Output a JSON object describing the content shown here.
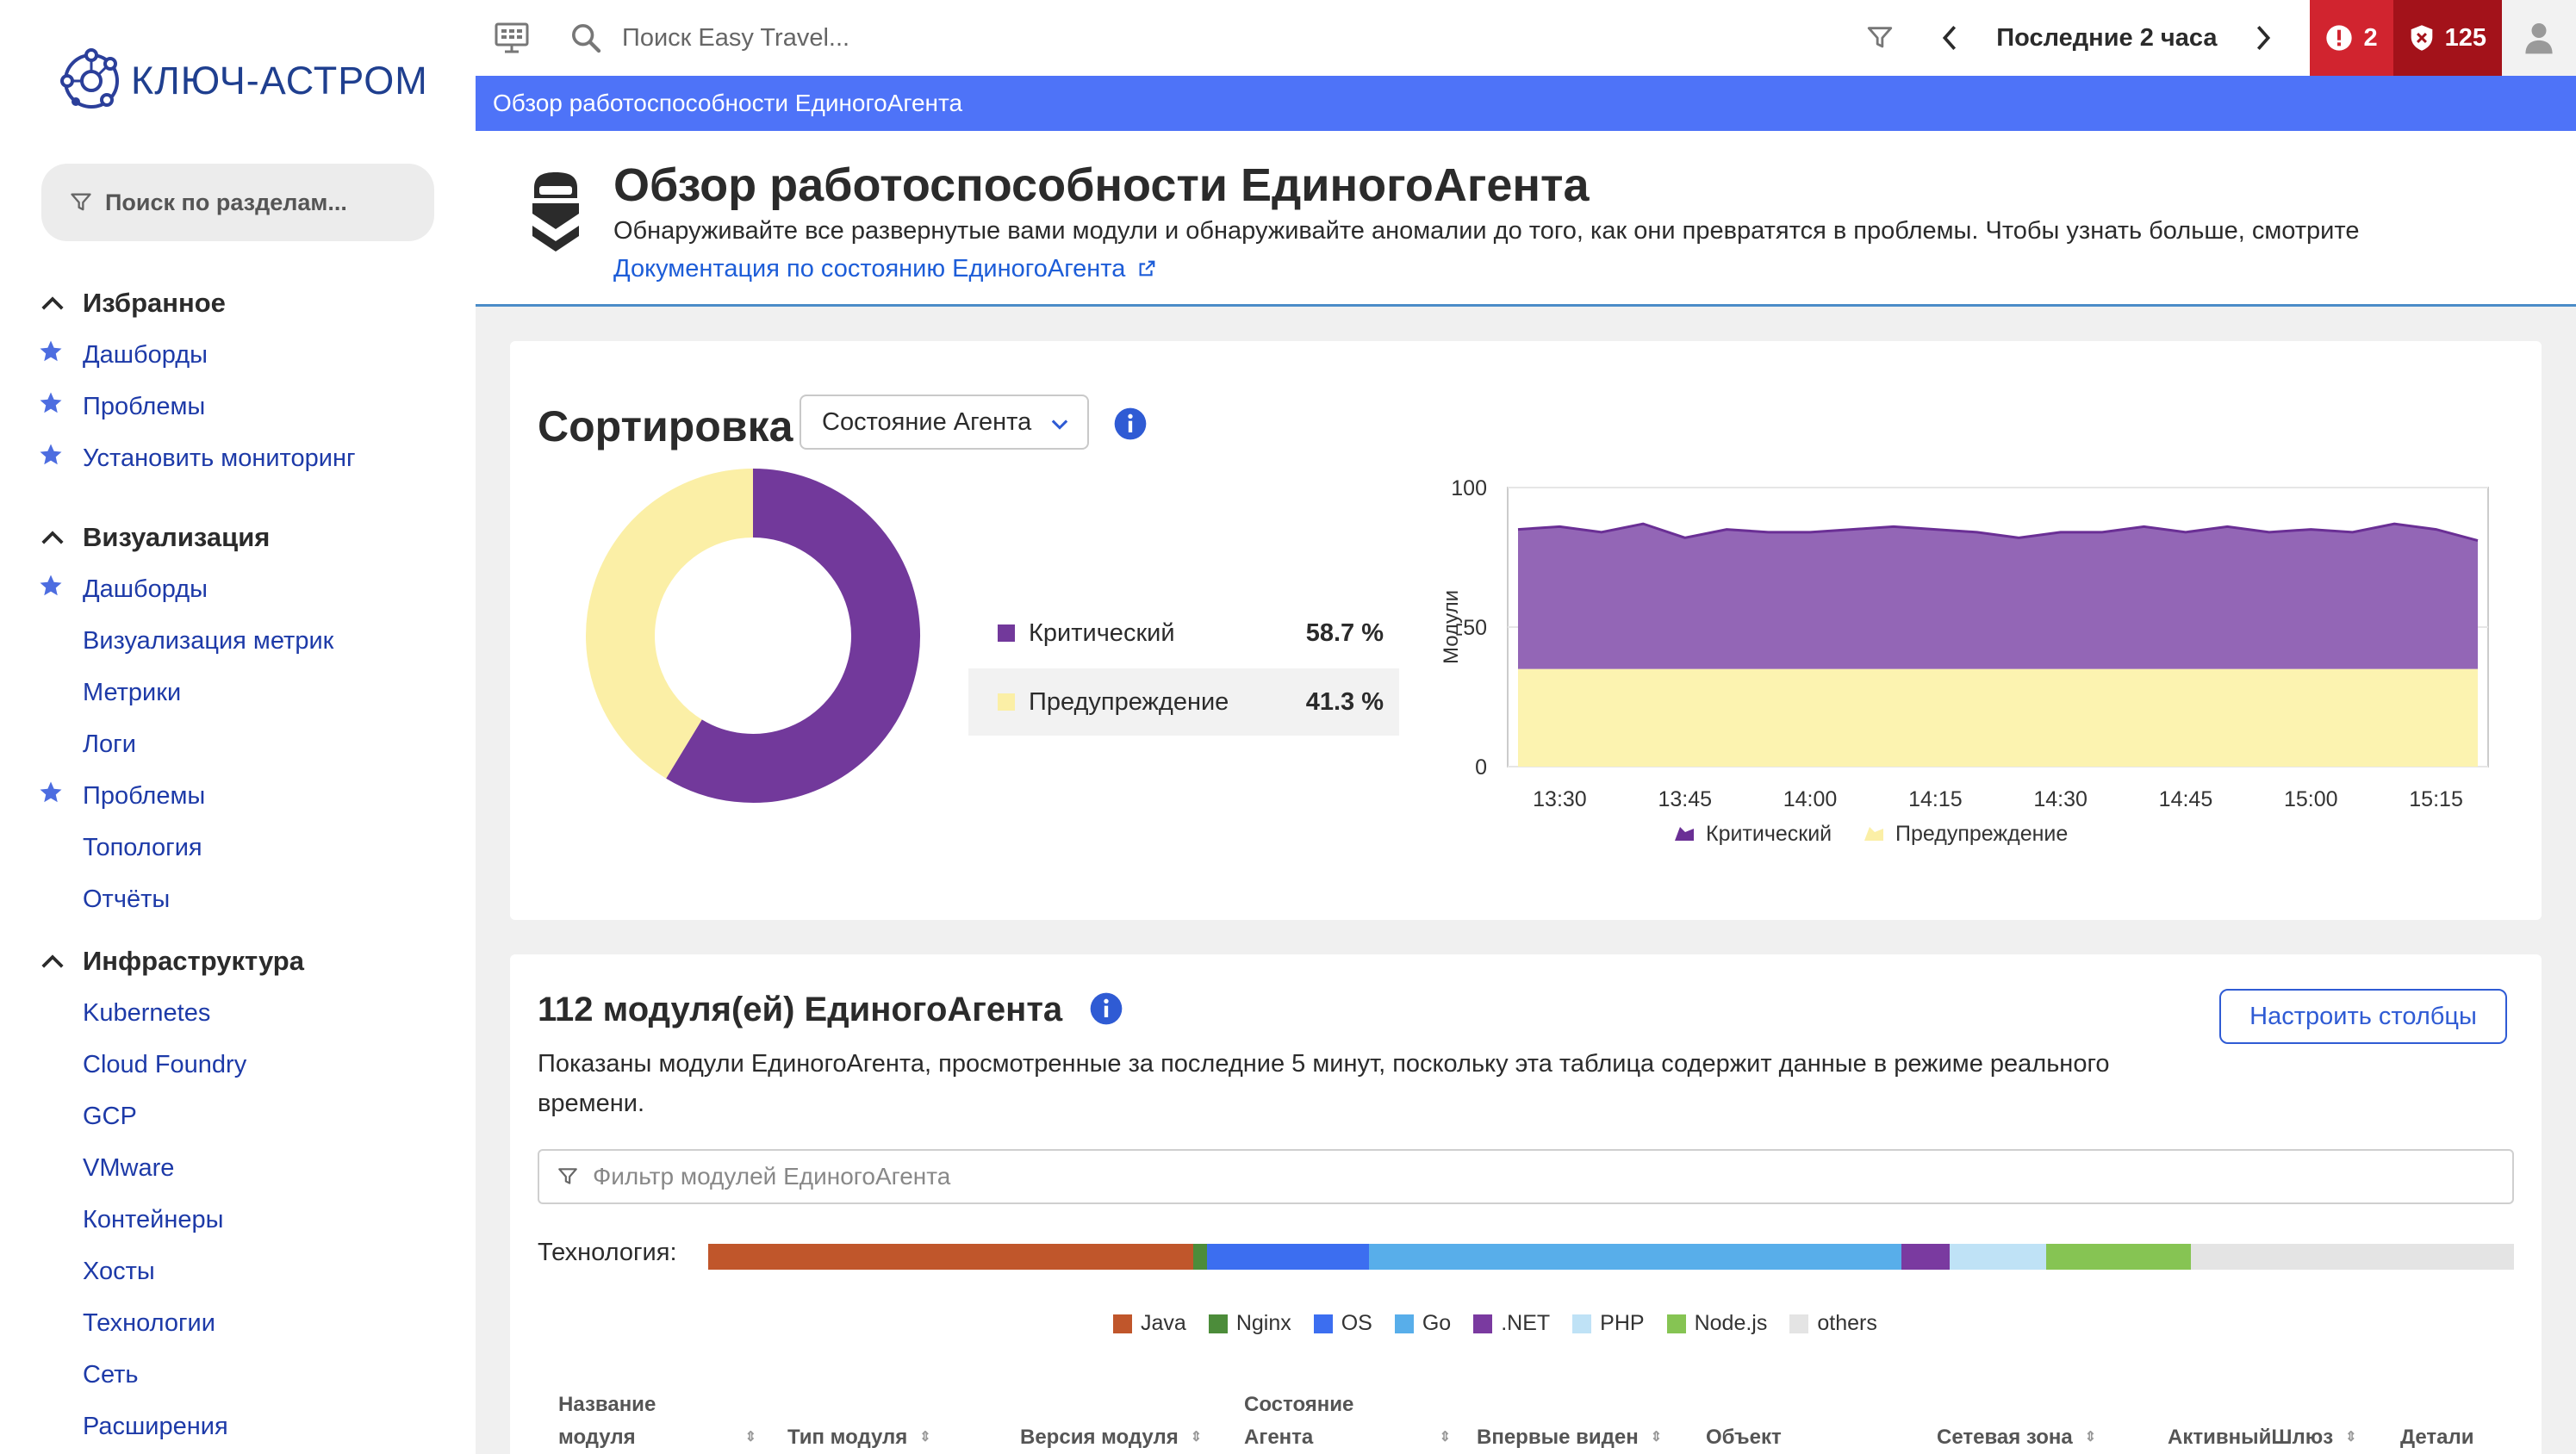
{
  "logo": {
    "text": "КЛЮЧ-АСТРОМ"
  },
  "sidebar": {
    "search_placeholder": "Поиск по разделам...",
    "groups": [
      {
        "title": "Избранное",
        "items": [
          {
            "label": "Дашборды",
            "starred": true
          },
          {
            "label": "Проблемы",
            "starred": true
          },
          {
            "label": "Установить мониторинг",
            "starred": true
          }
        ]
      },
      {
        "title": "Визуализация",
        "items": [
          {
            "label": "Дашборды",
            "starred": true
          },
          {
            "label": "Визуализация метрик",
            "starred": false
          },
          {
            "label": "Метрики",
            "starred": false
          },
          {
            "label": "Логи",
            "starred": false
          },
          {
            "label": "Проблемы",
            "starred": true
          },
          {
            "label": "Топология",
            "starred": false
          },
          {
            "label": "Отчёты",
            "starred": false
          }
        ]
      },
      {
        "title": "Инфраструктура",
        "items": [
          {
            "label": "Kubernetes",
            "starred": false
          },
          {
            "label": "Cloud Foundry",
            "starred": false
          },
          {
            "label": "GCP",
            "starred": false
          },
          {
            "label": "VMware",
            "starred": false
          },
          {
            "label": "Контейнеры",
            "starred": false
          },
          {
            "label": "Хосты",
            "starred": false
          },
          {
            "label": "Технологии",
            "starred": false
          },
          {
            "label": "Сеть",
            "starred": false
          },
          {
            "label": "Расширения",
            "starred": false
          }
        ]
      }
    ]
  },
  "topbar": {
    "search_placeholder": "Поиск Easy Travel...",
    "timeframe": "Последние 2 часа",
    "problems_count": "2",
    "security_count": "125"
  },
  "breadcrumb": "Обзор работоспособности ЕдиногоАгента",
  "header": {
    "title": "Обзор работоспособности ЕдиногоАгента",
    "description": "Обнаруживайте все развернутые вами модули и обнаруживайте аномалии до того, как они превратятся в проблемы. Чтобы узнать больше, смотрите",
    "link": "Документация по состоянию ЕдиногоАгента"
  },
  "sort_card": {
    "title": "Сортировка",
    "select_value": "Состояние Агента",
    "legend": [
      {
        "label": "Критический",
        "pct": "58.7 %"
      },
      {
        "label": "Предупреждение",
        "pct": "41.3 %"
      }
    ]
  },
  "chart_data": [
    {
      "type": "pie",
      "categories": [
        "Критический",
        "Предупреждение"
      ],
      "values": [
        58.7,
        41.3
      ],
      "colors": [
        "#72399b",
        "#fbefa6"
      ],
      "donut": true
    },
    {
      "type": "area",
      "stacked": true,
      "x": [
        "13:25",
        "13:30",
        "13:35",
        "13:40",
        "13:45",
        "13:50",
        "13:55",
        "14:00",
        "14:05",
        "14:10",
        "14:15",
        "14:20",
        "14:25",
        "14:30",
        "14:35",
        "14:40",
        "14:45",
        "14:50",
        "14:55",
        "15:00",
        "15:05",
        "15:10",
        "15:15",
        "15:20"
      ],
      "x_tick_labels": [
        "13:30",
        "13:45",
        "14:00",
        "14:15",
        "14:30",
        "14:45",
        "15:00",
        "15:15"
      ],
      "ylabel": "Модули",
      "ylim": [
        0,
        100
      ],
      "y_ticks": [
        0,
        50,
        100
      ],
      "series": [
        {
          "name": "Предупреждение",
          "color": "#fcf3b0",
          "values": [
            35,
            35,
            35,
            35,
            35,
            35,
            35,
            35,
            35,
            35,
            35,
            35,
            35,
            35,
            35,
            35,
            35,
            35,
            35,
            35,
            35,
            35,
            35,
            35
          ]
        },
        {
          "name": "Критический",
          "color": "#9366b6",
          "values": [
            50,
            51,
            49,
            52,
            47,
            50,
            49,
            49,
            50,
            51,
            50,
            49,
            47,
            49,
            49,
            51,
            49,
            51,
            49,
            50,
            49,
            52,
            50,
            46
          ]
        }
      ],
      "grid": true,
      "legend": "bottom"
    }
  ],
  "modules_card": {
    "title": "112 модуля(ей) ЕдиногоАгента",
    "configure_button": "Настроить столбцы",
    "description": "Показаны модули ЕдиногоАгента, просмотренные за последние 5 минут, поскольку эта таблица содержит данные в режиме реального времени.",
    "filter_placeholder": "Фильтр модулей ЕдиногоАгента",
    "tech_label": "Технология:",
    "tech_segments": [
      {
        "name": "Java",
        "share": 0.141,
        "color": "#c0562b"
      },
      {
        "name": "Nginx",
        "share": 0.004,
        "color": "#4c8c3a"
      },
      {
        "name": "OS",
        "share": 0.047,
        "color": "#3c6ef0"
      },
      {
        "name": "Go",
        "share": 0.155,
        "color": "#58aeea"
      },
      {
        "name": ".NET",
        "share": 0.014,
        "color": "#7a3aa0"
      },
      {
        "name": "PHP",
        "share": 0.028,
        "color": "#bfe2f6"
      },
      {
        "name": "Node.js",
        "share": 0.042,
        "color": "#86c453"
      },
      {
        "name": "others",
        "share": 0.094,
        "color": "#e4e4e4"
      }
    ],
    "columns": [
      "Название модуля",
      "Тип модуля",
      "Версия модуля",
      "Состояние Агента",
      "Впервые виден",
      "Объект",
      "Сетевая зона",
      "АктивныйШлюз",
      "Детали"
    ]
  }
}
